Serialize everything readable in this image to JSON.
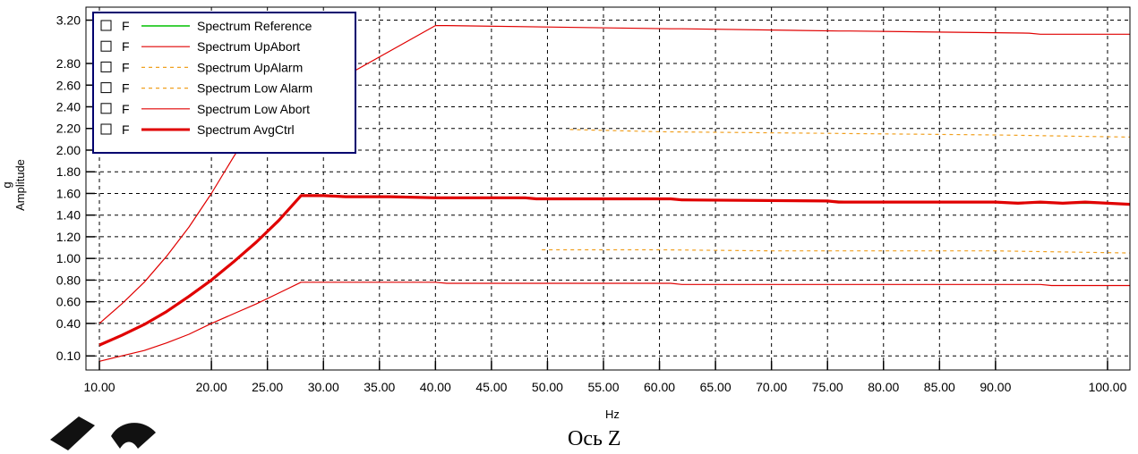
{
  "colors": {
    "reference": "#00c000",
    "abort": "#e00000",
    "alarm": "#f0a020",
    "avgctrl": "#e00000",
    "grid": "#000000",
    "legend_border": "#00006e",
    "watermark": "#000000"
  },
  "caption": "Ось Z",
  "chart_data": {
    "type": "line",
    "xlabel": "Hz",
    "ylabel_unit": "g",
    "ylabel": "Amplitude",
    "x_ticks": [
      10,
      20,
      25,
      30,
      35,
      40,
      45,
      50,
      55,
      60,
      65,
      70,
      75,
      80,
      85,
      90,
      100
    ],
    "x_tick_labels": [
      "10.00",
      "20.00",
      "25.00",
      "30.00",
      "35.00",
      "40.00",
      "45.00",
      "50.00",
      "55.00",
      "60.00",
      "65.00",
      "70.00",
      "75.00",
      "80.00",
      "85.00",
      "90.00",
      "100.00"
    ],
    "y_ticks": [
      0.1,
      0.4,
      0.6,
      0.8,
      1.0,
      1.2,
      1.4,
      1.6,
      1.8,
      2.0,
      2.2,
      2.4,
      2.6,
      2.8,
      3.2
    ],
    "y_tick_labels": [
      "0.10",
      "0.40",
      "0.60",
      "0.80",
      "1.00",
      "1.20",
      "1.40",
      "1.60",
      "1.80",
      "2.00",
      "2.20",
      "2.40",
      "2.60",
      "2.80",
      "3.20"
    ],
    "xlim": [
      8.8,
      102
    ],
    "ylim": [
      -0.03,
      3.32
    ],
    "grid": true,
    "legend_position": "top-left",
    "legend_prefix": "F",
    "series": [
      {
        "name": "Spectrum Reference",
        "color": "#00c000",
        "dash": "solid",
        "width": 1.5,
        "x": [
          10,
          12,
          14,
          16,
          18,
          20,
          22,
          24,
          26,
          28,
          30,
          35,
          40,
          45,
          50,
          55,
          60,
          65,
          70,
          75,
          80,
          85,
          90,
          95,
          100,
          102
        ],
        "y": [
          0.2,
          0.29,
          0.39,
          0.51,
          0.65,
          0.8,
          0.97,
          1.15,
          1.35,
          1.58,
          1.58,
          1.57,
          1.56,
          1.56,
          1.55,
          1.55,
          1.55,
          1.54,
          1.54,
          1.53,
          1.52,
          1.52,
          1.52,
          1.51,
          1.51,
          1.5
        ]
      },
      {
        "name": "Spectrum UpAbort",
        "color": "#e00000",
        "dash": "solid",
        "width": 1.2,
        "x": [
          10,
          12,
          14,
          16,
          18,
          20,
          22,
          23.6,
          40,
          41,
          61,
          62,
          76,
          77,
          93,
          94,
          102
        ],
        "y": [
          0.4,
          0.58,
          0.78,
          1.02,
          1.29,
          1.6,
          1.94,
          2.2,
          3.15,
          3.15,
          3.12,
          3.12,
          3.1,
          3.1,
          3.08,
          3.07,
          3.07
        ]
      },
      {
        "name": "Spectrum UpAlarm",
        "color": "#f0a020",
        "dash": "4,4",
        "width": 1.2,
        "x": [
          52,
          60,
          70,
          80,
          90,
          102
        ],
        "y": [
          2.19,
          2.17,
          2.16,
          2.15,
          2.14,
          2.12
        ]
      },
      {
        "name": "Spectrum Low Alarm",
        "color": "#f0a020",
        "dash": "4,4",
        "width": 1.2,
        "x": [
          49.5,
          60,
          70,
          80,
          90,
          102
        ],
        "y": [
          1.08,
          1.08,
          1.07,
          1.07,
          1.07,
          1.05
        ]
      },
      {
        "name": "Spectrum Low Abort",
        "color": "#e00000",
        "dash": "solid",
        "width": 1.2,
        "x": [
          10,
          12,
          14,
          16,
          18,
          20,
          22,
          24,
          26,
          28,
          40,
          41,
          61,
          62,
          76,
          77,
          94,
          95,
          102
        ],
        "y": [
          0.05,
          0.1,
          0.15,
          0.22,
          0.3,
          0.4,
          0.49,
          0.58,
          0.68,
          0.78,
          0.78,
          0.77,
          0.77,
          0.76,
          0.76,
          0.76,
          0.76,
          0.75,
          0.75
        ]
      },
      {
        "name": "Spectrum AvgCtrl",
        "color": "#e00000",
        "dash": "solid",
        "width": 3.2,
        "x": [
          10,
          12,
          14,
          16,
          18,
          20,
          22,
          24,
          26,
          28,
          30,
          32,
          34,
          36,
          40,
          41,
          48,
          49,
          60,
          61,
          62,
          75,
          76,
          90,
          92,
          94,
          96,
          98,
          100,
          102
        ],
        "y": [
          0.2,
          0.29,
          0.39,
          0.51,
          0.65,
          0.8,
          0.97,
          1.15,
          1.35,
          1.58,
          1.58,
          1.57,
          1.57,
          1.57,
          1.56,
          1.56,
          1.56,
          1.55,
          1.55,
          1.55,
          1.54,
          1.53,
          1.52,
          1.52,
          1.51,
          1.52,
          1.51,
          1.52,
          1.51,
          1.5
        ]
      }
    ]
  }
}
